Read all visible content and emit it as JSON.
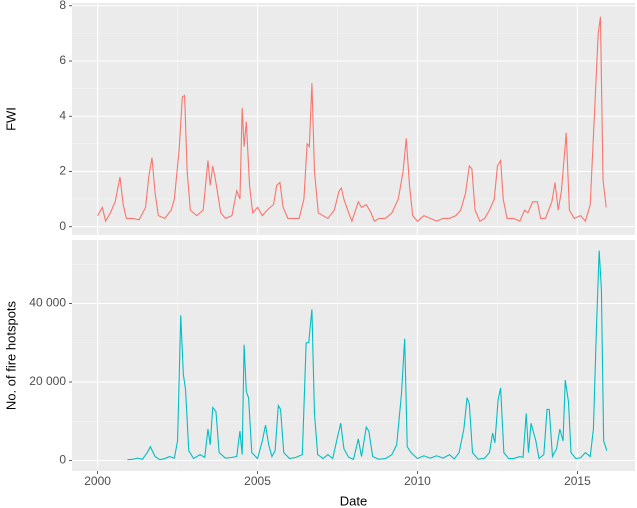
{
  "chart_data": [
    {
      "type": "line",
      "ylabel": "FWI",
      "color": "#f8766d",
      "grid": true,
      "xlim": [
        1999.2,
        2016.8
      ],
      "xticks": [
        2000,
        2005,
        2010,
        2015
      ],
      "ylim": [
        -0.3,
        8.1
      ],
      "yticks": [
        0,
        2,
        4,
        6,
        8
      ],
      "x": [
        2000.0,
        2000.15,
        2000.25,
        2000.4,
        2000.55,
        2000.7,
        2000.8,
        2000.9,
        2001.1,
        2001.3,
        2001.5,
        2001.6,
        2001.7,
        2001.8,
        2001.9,
        2002.1,
        2002.3,
        2002.4,
        2002.55,
        2002.65,
        2002.72,
        2002.8,
        2002.9,
        2003.1,
        2003.3,
        2003.45,
        2003.52,
        2003.6,
        2003.7,
        2003.85,
        2004.0,
        2004.2,
        2004.35,
        2004.45,
        2004.52,
        2004.58,
        2004.65,
        2004.75,
        2004.85,
        2005.0,
        2005.15,
        2005.3,
        2005.5,
        2005.6,
        2005.7,
        2005.8,
        2005.95,
        2006.1,
        2006.3,
        2006.45,
        2006.55,
        2006.62,
        2006.7,
        2006.78,
        2006.9,
        2007.05,
        2007.2,
        2007.4,
        2007.55,
        2007.62,
        2007.7,
        2007.85,
        2007.95,
        2008.15,
        2008.25,
        2008.4,
        2008.55,
        2008.65,
        2008.8,
        2009.0,
        2009.2,
        2009.4,
        2009.55,
        2009.65,
        2009.75,
        2009.85,
        2010.0,
        2010.2,
        2010.4,
        2010.6,
        2010.8,
        2011.0,
        2011.2,
        2011.35,
        2011.5,
        2011.62,
        2011.7,
        2011.8,
        2011.95,
        2012.1,
        2012.25,
        2012.4,
        2012.5,
        2012.6,
        2012.68,
        2012.8,
        2013.0,
        2013.2,
        2013.35,
        2013.45,
        2013.6,
        2013.75,
        2013.85,
        2014.0,
        2014.2,
        2014.3,
        2014.4,
        2014.5,
        2014.65,
        2014.75,
        2014.9,
        2015.1,
        2015.25,
        2015.4,
        2015.55,
        2015.65,
        2015.72,
        2015.8,
        2015.9
      ],
      "values": [
        0.4,
        0.7,
        0.2,
        0.5,
        0.9,
        1.8,
        0.8,
        0.3,
        0.3,
        0.25,
        0.7,
        1.8,
        2.5,
        1.2,
        0.4,
        0.3,
        0.6,
        1.0,
        2.8,
        4.7,
        4.75,
        2.0,
        0.6,
        0.4,
        0.6,
        2.4,
        1.5,
        2.2,
        1.6,
        0.5,
        0.3,
        0.4,
        1.3,
        1.0,
        4.3,
        2.9,
        3.8,
        1.5,
        0.5,
        0.7,
        0.4,
        0.6,
        0.8,
        1.5,
        1.6,
        0.7,
        0.3,
        0.3,
        0.3,
        1.0,
        3.0,
        2.9,
        5.2,
        2.0,
        0.5,
        0.4,
        0.3,
        0.6,
        1.3,
        1.4,
        1.0,
        0.5,
        0.2,
        0.9,
        0.7,
        0.8,
        0.5,
        0.2,
        0.3,
        0.3,
        0.5,
        1.0,
        2.0,
        3.2,
        1.5,
        0.4,
        0.2,
        0.4,
        0.3,
        0.2,
        0.3,
        0.3,
        0.4,
        0.6,
        1.2,
        2.2,
        2.1,
        0.6,
        0.2,
        0.3,
        0.6,
        1.0,
        2.2,
        2.4,
        1.0,
        0.3,
        0.3,
        0.2,
        0.6,
        0.5,
        0.9,
        0.9,
        0.3,
        0.3,
        0.9,
        1.6,
        0.6,
        1.3,
        3.4,
        0.6,
        0.3,
        0.4,
        0.2,
        0.8,
        4.5,
        7.0,
        7.6,
        1.7,
        0.7
      ]
    },
    {
      "type": "line",
      "ylabel": "No. of fire hotspots",
      "xlabel": "Date",
      "color": "#00bfc4",
      "grid": true,
      "xlim": [
        1999.2,
        2016.8
      ],
      "xticks": [
        2000,
        2005,
        2010,
        2015
      ],
      "ylim": [
        -2675,
        56175
      ],
      "yticks": [
        0,
        {
          "value": 20000,
          "label": "20 000"
        },
        {
          "value": 40000,
          "label": "40 000"
        }
      ],
      "x": [
        2000.93,
        2001.1,
        2001.25,
        2001.4,
        2001.55,
        2001.65,
        2001.8,
        2001.95,
        2002.1,
        2002.25,
        2002.4,
        2002.5,
        2002.6,
        2002.68,
        2002.75,
        2002.85,
        2003.0,
        2003.2,
        2003.35,
        2003.45,
        2003.52,
        2003.6,
        2003.7,
        2003.8,
        2004.0,
        2004.2,
        2004.35,
        2004.45,
        2004.52,
        2004.58,
        2004.65,
        2004.72,
        2004.82,
        2005.0,
        2005.15,
        2005.25,
        2005.35,
        2005.45,
        2005.55,
        2005.65,
        2005.72,
        2005.82,
        2006.0,
        2006.2,
        2006.4,
        2006.52,
        2006.6,
        2006.7,
        2006.78,
        2006.88,
        2007.05,
        2007.2,
        2007.35,
        2007.5,
        2007.6,
        2007.7,
        2007.85,
        2008.0,
        2008.15,
        2008.25,
        2008.4,
        2008.48,
        2008.6,
        2008.8,
        2009.0,
        2009.2,
        2009.35,
        2009.5,
        2009.6,
        2009.68,
        2009.8,
        2010.0,
        2010.2,
        2010.4,
        2010.6,
        2010.8,
        2011.0,
        2011.15,
        2011.3,
        2011.45,
        2011.55,
        2011.62,
        2011.72,
        2011.9,
        2012.1,
        2012.25,
        2012.35,
        2012.42,
        2012.52,
        2012.6,
        2012.7,
        2012.85,
        2013.0,
        2013.2,
        2013.3,
        2013.4,
        2013.47,
        2013.55,
        2013.7,
        2013.8,
        2013.95,
        2014.05,
        2014.12,
        2014.22,
        2014.35,
        2014.45,
        2014.55,
        2014.62,
        2014.72,
        2014.8,
        2014.95,
        2015.1,
        2015.25,
        2015.4,
        2015.5,
        2015.6,
        2015.68,
        2015.75,
        2015.82,
        2015.92
      ],
      "values": [
        200,
        300,
        600,
        300,
        2000,
        3500,
        1000,
        200,
        500,
        1000,
        600,
        5000,
        37000,
        22000,
        18000,
        2500,
        500,
        1500,
        800,
        8000,
        4000,
        13500,
        12500,
        2000,
        600,
        800,
        1000,
        7500,
        1500,
        29500,
        17500,
        16000,
        2000,
        500,
        5000,
        9000,
        4000,
        1000,
        2500,
        14000,
        13000,
        2000,
        500,
        800,
        1500,
        30000,
        30000,
        38500,
        12000,
        1500,
        500,
        1500,
        500,
        6000,
        9500,
        3000,
        800,
        300,
        5500,
        1000,
        8500,
        7500,
        1000,
        300,
        500,
        1500,
        4000,
        17000,
        31000,
        3500,
        2000,
        500,
        1200,
        600,
        1200,
        600,
        1500,
        400,
        2000,
        8000,
        16000,
        14500,
        2000,
        300,
        600,
        2000,
        7000,
        4500,
        15500,
        18500,
        2000,
        500,
        500,
        1000,
        800,
        12000,
        2000,
        9500,
        5000,
        500,
        1500,
        13000,
        13000,
        1000,
        3000,
        8000,
        5000,
        20500,
        15000,
        2000,
        500,
        700,
        2000,
        1000,
        8000,
        35000,
        53500,
        43500,
        5000,
        2500
      ]
    }
  ]
}
